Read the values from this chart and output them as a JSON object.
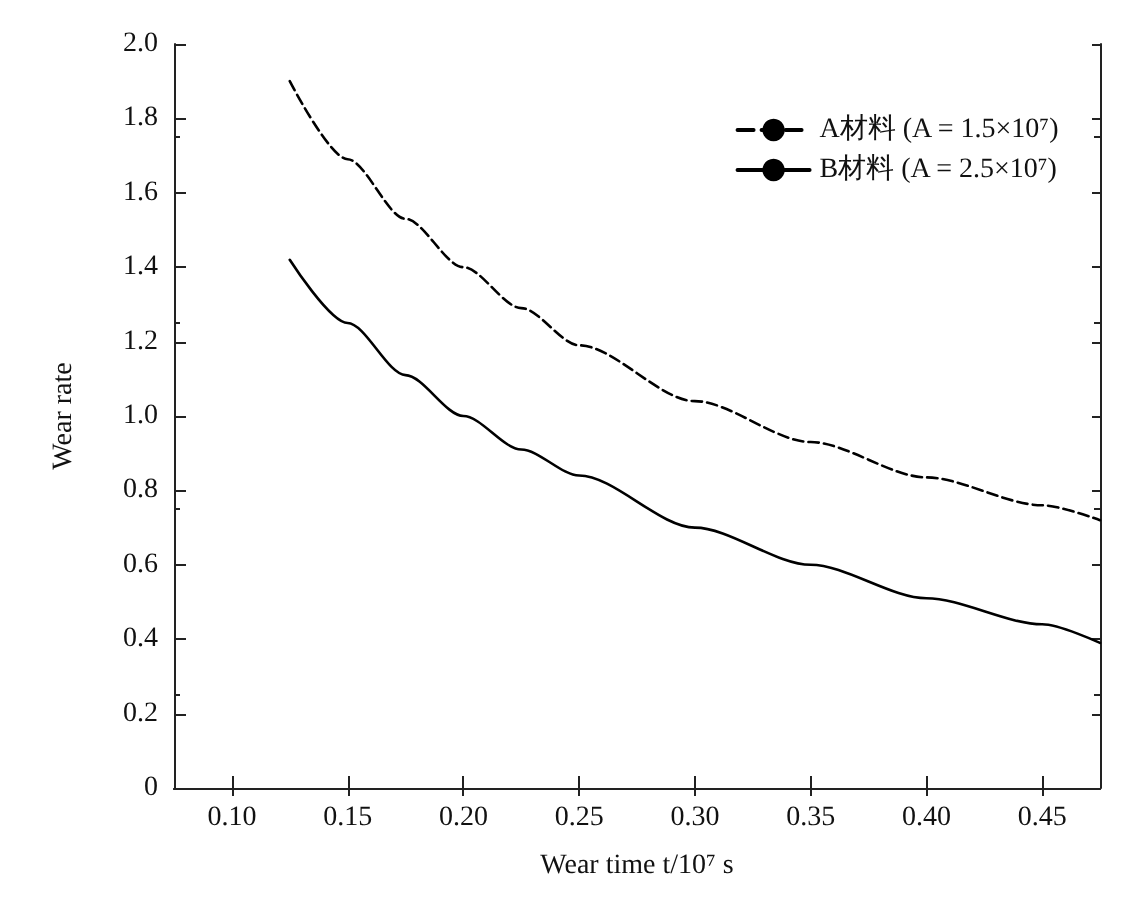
{
  "chart_data": {
    "type": "line",
    "xlabel": "Wear time t/10⁷ s",
    "ylabel": "Wear rate",
    "xlim": [
      0.075,
      0.475
    ],
    "ylim": [
      0,
      2
    ],
    "xticks": [
      {
        "value": 0.1,
        "label": "0.10"
      },
      {
        "value": 0.15,
        "label": "0.15"
      },
      {
        "value": 0.2,
        "label": "0.20"
      },
      {
        "value": 0.25,
        "label": "0.25"
      },
      {
        "value": 0.3,
        "label": "0.30"
      },
      {
        "value": 0.35,
        "label": "0.35"
      },
      {
        "value": 0.4,
        "label": "0.40"
      },
      {
        "value": 0.45,
        "label": "0.45"
      }
    ],
    "yticks": [
      0,
      0.2,
      0.4,
      0.6,
      0.8,
      {
        "value": 1,
        "label": "1.0"
      },
      1.2,
      1.4,
      1.6,
      1.8,
      {
        "value": 2,
        "label": "2.0"
      }
    ],
    "x": [
      0.125,
      0.15,
      0.175,
      0.2,
      0.225,
      0.25,
      0.3,
      0.35,
      0.4,
      0.45,
      0.475
    ],
    "series": [
      {
        "name": "A材料 (A = 1.5×10⁷)",
        "color": "#000000",
        "line_style": "dashed",
        "values": [
          1.9,
          1.69,
          1.53,
          1.4,
          1.29,
          1.19,
          1.04,
          0.93,
          0.835,
          0.76,
          0.72
        ]
      },
      {
        "name": "B材料 (A = 2.5×10⁷)",
        "color": "#000000",
        "line_style": "solid",
        "values": [
          1.42,
          1.25,
          1.11,
          1.0,
          0.91,
          0.84,
          0.7,
          0.6,
          0.51,
          0.44,
          0.39
        ]
      }
    ],
    "legend": "top right",
    "grid": false,
    "marker": "none"
  }
}
